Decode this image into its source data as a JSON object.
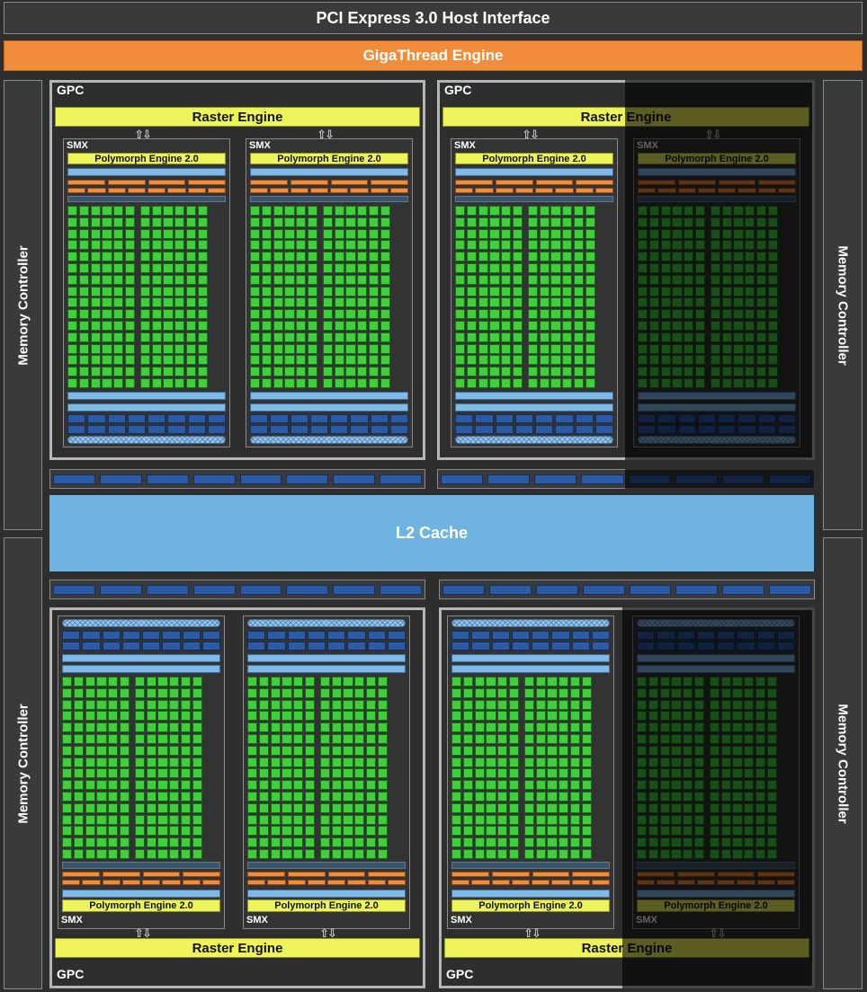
{
  "header": {
    "title": "PCI Express 3.0 Host Interface"
  },
  "gigathread": {
    "label": "GigaThread Engine"
  },
  "memory_controller": {
    "label": "Memory Controller"
  },
  "l2_cache": {
    "label": "L2 Cache"
  },
  "gpc": {
    "label": "GPC",
    "raster_label": "Raster Engine"
  },
  "smx": {
    "label": "SMX",
    "polymorph_label": "Polymorph Engine 2.0"
  },
  "icons": {
    "arrow": "bidirectional-arrows-icon"
  },
  "colors": {
    "background": "#2e2e2e",
    "orange": "#f08c3a",
    "yellow": "#eef55a",
    "light_blue": "#6fb3e0",
    "core_green": "#3fcf3a",
    "dark_blue": "#2b5ba6"
  }
}
